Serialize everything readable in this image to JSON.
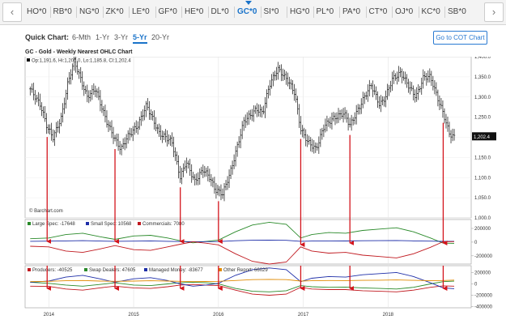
{
  "tabs": {
    "symbols": [
      "HO*0",
      "RB*0",
      "NG*0",
      "ZK*0",
      "LE*0",
      "GF*0",
      "HE*0",
      "DL*0",
      "GC*0",
      "SI*0",
      "HG*0",
      "PL*0",
      "PA*0",
      "CT*0",
      "OJ*0",
      "KC*0",
      "SB*0"
    ],
    "active": "GC*0",
    "prev_glyph": "‹",
    "next_glyph": "›"
  },
  "toolbar": {
    "quick_chart_label": "Quick Chart:",
    "periods": [
      "6-Mth",
      "1-Yr",
      "3-Yr",
      "5-Yr",
      "20-Yr"
    ],
    "active_period": "5-Yr",
    "cot_button": "Go to COT Chart"
  },
  "chart_title": "GC - Gold - Weekly Nearest OHLC Chart",
  "colors": {
    "ohlc": "#111111",
    "large_spec": "#2a8a2a",
    "small_spec": "#1e2ea8",
    "commercials": "#c0191f",
    "producers": "#c0191f",
    "swap_dealers": "#2a8a2a",
    "managed_money": "#1e2ea8",
    "other_report": "#e08a00",
    "annotation_arrow": "#d3141c",
    "accent": "#1a73c9"
  },
  "chart_data": [
    {
      "type": "ohlc",
      "title": "GC - Gold - Weekly Nearest OHLC Chart",
      "ohlc_label": "Op:1,191.6, Hi:1,206.0, Lo:1,185.8, Cl:1,202.4",
      "last_price_label": "1,202.4",
      "watermark": "© Barchart.com",
      "x_ticks": [
        "2014",
        "2015",
        "2016",
        "2017",
        "2018"
      ],
      "x_tick_dates": [
        2014.0,
        2015.0,
        2016.0,
        2017.0,
        2018.0
      ],
      "xlim": [
        2013.72,
        2018.98
      ],
      "y_ticks": [
        "1,400.0",
        "1,350.0",
        "1,300.0",
        "1,250.0",
        "1,200.0",
        "1,150.0",
        "1,100.0",
        "1,050.0",
        "1,000.0"
      ],
      "y_tick_values": [
        1400,
        1350,
        1300,
        1250,
        1200,
        1150,
        1100,
        1050,
        1000
      ],
      "ylim": [
        1000,
        1400
      ],
      "close_series": {
        "x": [
          2013.78,
          2013.9,
          2013.98,
          2014.05,
          2014.15,
          2014.22,
          2014.3,
          2014.45,
          2014.55,
          2014.68,
          2014.78,
          2014.85,
          2014.92,
          2015.05,
          2015.15,
          2015.3,
          2015.45,
          2015.55,
          2015.62,
          2015.72,
          2015.82,
          2015.9,
          2015.96,
          2016.05,
          2016.15,
          2016.3,
          2016.45,
          2016.52,
          2016.6,
          2016.7,
          2016.82,
          2016.9,
          2016.97,
          2017.05,
          2017.15,
          2017.25,
          2017.38,
          2017.48,
          2017.55,
          2017.65,
          2017.72,
          2017.8,
          2017.9,
          2017.97,
          2018.05,
          2018.15,
          2018.25,
          2018.33,
          2018.42,
          2018.5,
          2018.58,
          2018.65,
          2018.72,
          2018.78
        ],
        "y": [
          1320,
          1280,
          1225,
          1200,
          1250,
          1330,
          1390,
          1300,
          1320,
          1240,
          1195,
          1170,
          1200,
          1230,
          1280,
          1210,
          1190,
          1100,
          1140,
          1090,
          1120,
          1100,
          1070,
          1060,
          1120,
          1240,
          1270,
          1260,
          1330,
          1370,
          1340,
          1310,
          1220,
          1190,
          1170,
          1230,
          1250,
          1260,
          1230,
          1270,
          1300,
          1330,
          1280,
          1300,
          1345,
          1360,
          1325,
          1300,
          1350,
          1350,
          1300,
          1260,
          1210,
          1200
        ]
      },
      "red_arrows_at": [
        2013.98,
        2014.78,
        2015.55,
        2016.0,
        2016.97,
        2017.55,
        2018.65
      ]
    },
    {
      "type": "line",
      "legend": [
        {
          "label": "Large Spec: -17648",
          "series": "large_spec"
        },
        {
          "label": "Small Spec: 10568",
          "series": "small_spec"
        },
        {
          "label": "Commercials: 7080",
          "series": "commercials"
        }
      ],
      "y_ticks": [
        "200000",
        "0",
        "-200000"
      ],
      "y_tick_values": [
        200000,
        0,
        -200000
      ],
      "ylim": [
        -320000,
        330000
      ],
      "x": [
        2013.78,
        2014.0,
        2014.2,
        2014.4,
        2014.6,
        2014.78,
        2015.0,
        2015.2,
        2015.4,
        2015.55,
        2015.7,
        2015.85,
        2016.0,
        2016.2,
        2016.4,
        2016.6,
        2016.8,
        2016.97,
        2017.1,
        2017.3,
        2017.5,
        2017.7,
        2017.9,
        2018.1,
        2018.3,
        2018.5,
        2018.65,
        2018.78
      ],
      "series": [
        {
          "name": "Large Spec",
          "values": [
            50000,
            60000,
            110000,
            130000,
            80000,
            40000,
            90000,
            100000,
            60000,
            20000,
            -10000,
            10000,
            30000,
            150000,
            250000,
            290000,
            260000,
            60000,
            110000,
            140000,
            130000,
            170000,
            190000,
            210000,
            150000,
            60000,
            -15000,
            -17648
          ]
        },
        {
          "name": "Small Spec",
          "values": [
            12000,
            14000,
            18000,
            22000,
            16000,
            12000,
            15000,
            18000,
            12000,
            9000,
            6000,
            7000,
            8000,
            20000,
            28000,
            30000,
            26000,
            12000,
            16000,
            18000,
            17000,
            20000,
            22000,
            24000,
            18000,
            14000,
            11000,
            10568
          ]
        },
        {
          "name": "Commercials",
          "values": [
            -60000,
            -70000,
            -130000,
            -150000,
            -100000,
            -50000,
            -110000,
            -120000,
            -70000,
            -30000,
            5000,
            -15000,
            -40000,
            -170000,
            -280000,
            -320000,
            -290000,
            -70000,
            -130000,
            -160000,
            -150000,
            -190000,
            -210000,
            -230000,
            -170000,
            -75000,
            6000,
            7080
          ]
        }
      ]
    },
    {
      "type": "line",
      "legend": [
        {
          "label": "Producers: -40525",
          "series": "producers"
        },
        {
          "label": "Swap Dealers: 47605",
          "series": "swap_dealers"
        },
        {
          "label": "Managed Money: -83677",
          "series": "managed_money"
        },
        {
          "label": "Other Report: 66029",
          "series": "other_report"
        }
      ],
      "y_ticks": [
        "200000",
        "0",
        "-200000",
        "-400000"
      ],
      "y_tick_values": [
        200000,
        0,
        -200000,
        -400000
      ],
      "ylim": [
        -420000,
        320000
      ],
      "x": [
        2013.78,
        2014.0,
        2014.2,
        2014.4,
        2014.6,
        2014.78,
        2015.0,
        2015.2,
        2015.4,
        2015.55,
        2015.7,
        2015.85,
        2016.0,
        2016.2,
        2016.4,
        2016.6,
        2016.8,
        2016.97,
        2017.1,
        2017.3,
        2017.5,
        2017.7,
        2017.9,
        2018.1,
        2018.3,
        2018.5,
        2018.65,
        2018.78
      ],
      "series": [
        {
          "name": "Producers",
          "values": [
            -40000,
            -45000,
            -90000,
            -110000,
            -70000,
            -40000,
            -70000,
            -80000,
            -50000,
            -20000,
            -10000,
            -20000,
            -30000,
            -110000,
            -180000,
            -200000,
            -180000,
            -60000,
            -90000,
            -100000,
            -100000,
            -120000,
            -130000,
            -140000,
            -110000,
            -60000,
            -35000,
            -40525
          ]
        },
        {
          "name": "Swap Dealers",
          "values": [
            30000,
            10000,
            -20000,
            -40000,
            -10000,
            20000,
            -20000,
            -30000,
            0,
            20000,
            30000,
            20000,
            0,
            -80000,
            -130000,
            -140000,
            -120000,
            -30000,
            -50000,
            -60000,
            -55000,
            -70000,
            -80000,
            -90000,
            -60000,
            0,
            40000,
            47605
          ]
        },
        {
          "name": "Managed Money",
          "values": [
            30000,
            50000,
            120000,
            150000,
            90000,
            30000,
            90000,
            110000,
            60000,
            0,
            -40000,
            -20000,
            10000,
            150000,
            250000,
            280000,
            250000,
            40000,
            100000,
            130000,
            120000,
            160000,
            180000,
            200000,
            130000,
            20000,
            -70000,
            -83677
          ]
        },
        {
          "name": "Other Report",
          "values": [
            40000,
            45000,
            55000,
            60000,
            50000,
            45000,
            50000,
            55000,
            50000,
            45000,
            40000,
            42000,
            45000,
            60000,
            75000,
            80000,
            75000,
            50000,
            55000,
            60000,
            58000,
            62000,
            65000,
            70000,
            62000,
            55000,
            60000,
            66029
          ]
        }
      ]
    }
  ]
}
